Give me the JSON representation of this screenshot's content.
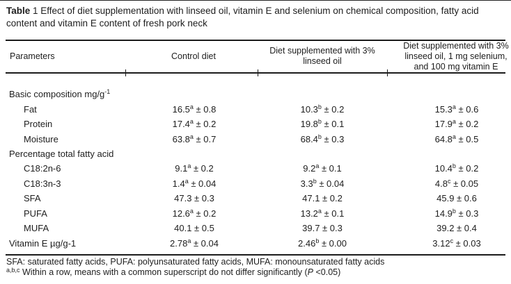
{
  "caption": {
    "bold": "Table",
    "rest": " 1 Effect of diet supplementation with linseed oil, vitamin E and selenium on chemical composition, fatty acid content and vitamin E content of fresh pork neck"
  },
  "table": {
    "columns": [
      {
        "id": "parameters",
        "lines": [
          "Parameters"
        ]
      },
      {
        "id": "control-diet",
        "lines": [
          "Control diet"
        ]
      },
      {
        "id": "linseed-diet",
        "lines": [
          "Diet supplemented with 3%",
          "linseed oil"
        ]
      },
      {
        "id": "linseed-selenium-vitamin-e-diet",
        "lines": [
          "Diet supplemented with 3%",
          "linseed oil, 1 mg selenium,",
          "and 100 mg vitamin E"
        ]
      }
    ],
    "rows": [
      {
        "param": "Basic composition mg/g",
        "param_sup": "-1",
        "indent": false,
        "values": [
          null,
          null,
          null
        ]
      },
      {
        "param": "Fat",
        "indent": true,
        "values": [
          {
            "num": "16.5",
            "sup": "a",
            "err": "± 0.8"
          },
          {
            "num": "10.3",
            "sup": "b",
            "err": "± 0.2"
          },
          {
            "num": "15.3",
            "sup": "a",
            "err": "± 0.6"
          }
        ]
      },
      {
        "param": "Protein",
        "indent": true,
        "values": [
          {
            "num": "17.4",
            "sup": "a",
            "err": "± 0.2"
          },
          {
            "num": "19.8",
            "sup": "b",
            "err": "± 0.1"
          },
          {
            "num": "17.9",
            "sup": "a",
            "err": "± 0.2"
          }
        ]
      },
      {
        "param": "Moisture",
        "indent": true,
        "values": [
          {
            "num": "63.8",
            "sup": "a",
            "err": "± 0.7"
          },
          {
            "num": "68.4",
            "sup": "b",
            "err": "± 0.3"
          },
          {
            "num": "64.8",
            "sup": "a",
            "err": "± 0.5"
          }
        ]
      },
      {
        "param": "Percentage total fatty acid",
        "indent": false,
        "values": [
          null,
          null,
          null
        ]
      },
      {
        "param": "C18:2n-6",
        "indent": true,
        "values": [
          {
            "num": "9.1",
            "sup": "a",
            "err": "± 0.2"
          },
          {
            "num": "9.2",
            "sup": "a",
            "err": "± 0.1"
          },
          {
            "num": "10.4",
            "sup": "b",
            "err": "± 0.2"
          }
        ]
      },
      {
        "param": "C18:3n-3",
        "indent": true,
        "values": [
          {
            "num": "1.4",
            "sup": "a",
            "err": "± 0.04"
          },
          {
            "num": "3.3",
            "sup": "b",
            "err": "± 0.04"
          },
          {
            "num": "4.8",
            "sup": "c",
            "err": "± 0.05"
          }
        ]
      },
      {
        "param": "SFA",
        "indent": true,
        "values": [
          {
            "num": "47.3",
            "sup": "",
            "err": "± 0.3"
          },
          {
            "num": "47.1",
            "sup": "",
            "err": "± 0.2"
          },
          {
            "num": "45.9",
            "sup": "",
            "err": "± 0.6"
          }
        ]
      },
      {
        "param": "PUFA",
        "indent": true,
        "values": [
          {
            "num": "12.6",
            "sup": "a",
            "err": "± 0.2"
          },
          {
            "num": "13.2",
            "sup": "a",
            "err": "± 0.1"
          },
          {
            "num": "14.9",
            "sup": "b",
            "err": "± 0.3"
          }
        ]
      },
      {
        "param": "MUFA",
        "indent": true,
        "values": [
          {
            "num": "40.1",
            "sup": "",
            "err": "± 0.5"
          },
          {
            "num": "39.7",
            "sup": "",
            "err": "± 0.3"
          },
          {
            "num": "39.2",
            "sup": "",
            "err": "± 0.4"
          }
        ]
      },
      {
        "param": "Vitamin E µg/g-1",
        "indent": false,
        "values": [
          {
            "num": "2.78",
            "sup": "a",
            "err": "± 0.04"
          },
          {
            "num": "2.46",
            "sup": "b",
            "err": "± 0.00"
          },
          {
            "num": "3.12",
            "sup": "c",
            "err": "± 0.03"
          }
        ]
      }
    ]
  },
  "footnotes": {
    "abbreviations": "SFA: saturated fatty acids, PUFA: polyunsaturated fatty acids, MUFA: monounsaturated fatty acids",
    "significance": {
      "sup": "a,b,c",
      "pre": " Within a row, means with a common superscript do not differ significantly (",
      "italic": "P",
      "post": " <0.05)"
    }
  }
}
